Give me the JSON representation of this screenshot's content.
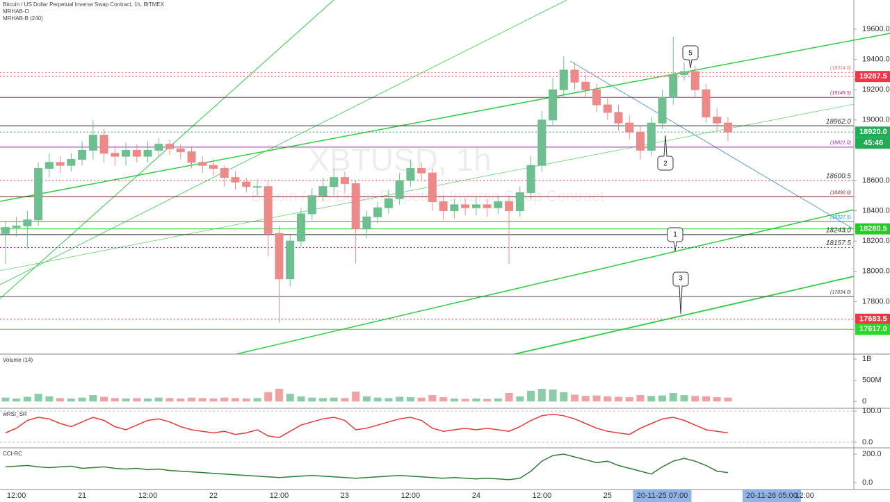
{
  "chart_data": [
    {
      "type": "candlestick",
      "title": "Bitcoin / US Dollar Perpetual Inverse Swap Contract, 1h, BITMEX",
      "indicators": [
        "MRHAB-O",
        "MRHAB-B (240)"
      ],
      "watermark": "XBTUSD, 1h",
      "watermark_subtitle": "Bitcoin / US Dollar Perpetual Inverse Swap Contract",
      "categories": [
        null,
        "12:00",
        null,
        null,
        null,
        null,
        null,
        "21",
        null,
        null,
        null,
        null,
        null,
        "12:00",
        null,
        null,
        null,
        null,
        null,
        "22",
        null,
        null,
        null,
        null,
        null,
        "12:00",
        null,
        null,
        null,
        null,
        null,
        "23",
        null,
        null,
        null,
        null,
        null,
        "12:00",
        null,
        null,
        null,
        null,
        null,
        "24",
        null,
        null,
        null,
        null,
        null,
        "12:00",
        null,
        null,
        null,
        null,
        null,
        "25",
        null,
        null,
        null,
        null,
        "20-11-25 07:00",
        null,
        null,
        null,
        null,
        null,
        null,
        null,
        null,
        null,
        "20-11-26 05:00",
        null,
        null,
        "12:00",
        null,
        null,
        null,
        null
      ],
      "open": [
        18250,
        18290,
        18300,
        18340,
        18680,
        18720,
        18700,
        18740,
        18800,
        18900,
        18780,
        18760,
        18800,
        18760,
        18800,
        18840,
        18810,
        18790,
        18720,
        18700,
        18680,
        18620,
        18590,
        18560,
        18560,
        18250,
        17950,
        18200,
        18380,
        18500,
        18560,
        18620,
        18580,
        18280,
        18360,
        18420,
        18480,
        18600,
        18680,
        18650,
        18460,
        18400,
        18440,
        18420,
        18440,
        18420,
        18460,
        18400,
        18520,
        18700,
        19000,
        19200,
        19330,
        19250,
        19200,
        19100,
        19050,
        18980,
        18920,
        18800,
        18980,
        19150,
        19300,
        19320,
        19200,
        19020,
        18980,
        null,
        null,
        null,
        null,
        null,
        null,
        null,
        null,
        null,
        null,
        null
      ],
      "high": [
        18330,
        18360,
        18400,
        18720,
        18780,
        18760,
        18780,
        18860,
        19000,
        18940,
        18830,
        18850,
        18840,
        18860,
        18880,
        18870,
        18840,
        18820,
        18760,
        18740,
        18700,
        18660,
        18620,
        18610,
        18600,
        18300,
        18240,
        18420,
        18550,
        18620,
        18680,
        18660,
        18600,
        18400,
        18460,
        18540,
        18650,
        18740,
        18720,
        18680,
        18500,
        18480,
        18480,
        18490,
        18480,
        18500,
        18500,
        18560,
        18760,
        19060,
        19280,
        19420,
        19380,
        19300,
        19240,
        19150,
        19100,
        19030,
        18960,
        19020,
        19200,
        19550,
        19380,
        19360,
        19240,
        19080,
        19020,
        null,
        null,
        null,
        null,
        null,
        null,
        null,
        null,
        null,
        null,
        null
      ],
      "low": [
        18050,
        18230,
        18150,
        18300,
        18620,
        18650,
        18660,
        18700,
        18740,
        18720,
        18700,
        18700,
        18720,
        18720,
        18760,
        18770,
        18740,
        18680,
        18650,
        18630,
        18560,
        18540,
        18520,
        18500,
        18100,
        17660,
        17900,
        18160,
        18340,
        18460,
        18500,
        18520,
        18050,
        18220,
        18320,
        18380,
        18440,
        18560,
        18600,
        18400,
        18340,
        18350,
        18370,
        18370,
        18360,
        18380,
        18050,
        18360,
        18480,
        18660,
        18960,
        19150,
        19200,
        19150,
        19050,
        19000,
        18930,
        18870,
        18740,
        18760,
        18940,
        19100,
        19260,
        19150,
        18980,
        18930,
        18860,
        null,
        null,
        null,
        null,
        null,
        null,
        null,
        null,
        null,
        null,
        null
      ],
      "close": [
        18290,
        18300,
        18340,
        18680,
        18720,
        18700,
        18740,
        18800,
        18900,
        18780,
        18760,
        18800,
        18760,
        18800,
        18840,
        18810,
        18790,
        18720,
        18700,
        18680,
        18620,
        18590,
        18560,
        18560,
        18250,
        17950,
        18200,
        18380,
        18500,
        18560,
        18620,
        18580,
        18280,
        18360,
        18420,
        18480,
        18600,
        18680,
        18650,
        18460,
        18400,
        18440,
        18420,
        18440,
        18420,
        18460,
        18400,
        18520,
        18700,
        19000,
        19200,
        19330,
        19250,
        19200,
        19100,
        19050,
        18980,
        18920,
        18800,
        18980,
        19150,
        19300,
        19320,
        19200,
        19020,
        18980,
        18920,
        null,
        null,
        null,
        null,
        null,
        null,
        null,
        null,
        null,
        null,
        null
      ],
      "up_color": "#6dbf8f",
      "down_color": "#ec8a8a",
      "ylim": [
        17453,
        19793
      ],
      "yticks": [
        {
          "value": 17800,
          "label": "17800.0"
        },
        {
          "value": 18000,
          "label": "18000.0"
        },
        {
          "value": 18200,
          "label": "18200.0"
        },
        {
          "value": 18400,
          "label": "18400.0"
        },
        {
          "value": 18600,
          "label": "18600.0"
        },
        {
          "value": 19000,
          "label": "19000.0"
        },
        {
          "value": 19200,
          "label": "19200.0"
        },
        {
          "value": 19400,
          "label": "19400.0"
        },
        {
          "value": 19600,
          "label": "19600.0"
        }
      ],
      "levels": [
        {
          "value": 19314,
          "label": "(19314.0)",
          "color": "#e57373",
          "style": "dotted"
        },
        {
          "value": 19287.5,
          "label": "19287.5",
          "color": "#f23645",
          "style": "dotted",
          "box": true
        },
        {
          "value": 19149.5,
          "label": "(19149.5)",
          "color": "#c2185b",
          "style": "solid"
        },
        {
          "value": 18962,
          "label": "18962.0",
          "color": "#333333",
          "style": "solid"
        },
        {
          "value": 18920,
          "label": "18920.0",
          "color": "#22ab55",
          "style": "dotted",
          "box": true
        },
        {
          "value": 18821,
          "label": "(18821.0)",
          "color": "#9c27b0",
          "style": "solid"
        },
        {
          "value": 18600.5,
          "label": "18600.5",
          "color": "#e53935",
          "style": "dotted"
        },
        {
          "value": 18492,
          "label": "(18492.0)",
          "color": "#7b1f1f",
          "style": "solid"
        },
        {
          "value": 18327.5,
          "label": "(18327.5)",
          "color": "#1e88e5",
          "style": "solid"
        },
        {
          "value": 18280.5,
          "label": "18280.5",
          "color": "#22cc22",
          "style": "solid",
          "box": true
        },
        {
          "value": 18243,
          "label": "18243.0",
          "color": "#222222",
          "style": "solid"
        },
        {
          "value": 18157.5,
          "label": "18157.5",
          "color": "#9c27b0",
          "style": "dotted"
        },
        {
          "value": 17834,
          "label": "(17834.0)",
          "color": "#444444",
          "style": "solid"
        },
        {
          "value": 17683.5,
          "label": "17683.5",
          "color": "#f23645",
          "style": "dotted",
          "box": true
        },
        {
          "value": 17617,
          "label": "17617.0",
          "color": "#22dd22",
          "style": "solid",
          "box": true
        }
      ],
      "countdown": "45:46",
      "annotations": [
        "5",
        "2",
        "1",
        "3"
      ]
    },
    {
      "type": "bar",
      "title": "Volume (14)",
      "values": [
        90000000,
        70000000,
        110000000,
        180000000,
        120000000,
        80000000,
        70000000,
        90000000,
        150000000,
        110000000,
        80000000,
        70000000,
        80000000,
        70000000,
        90000000,
        80000000,
        70000000,
        90000000,
        80000000,
        70000000,
        90000000,
        80000000,
        70000000,
        80000000,
        220000000,
        300000000,
        180000000,
        120000000,
        90000000,
        80000000,
        90000000,
        80000000,
        230000000,
        120000000,
        90000000,
        80000000,
        110000000,
        100000000,
        90000000,
        150000000,
        100000000,
        70000000,
        60000000,
        70000000,
        60000000,
        70000000,
        200000000,
        120000000,
        250000000,
        300000000,
        280000000,
        220000000,
        160000000,
        130000000,
        140000000,
        120000000,
        110000000,
        100000000,
        150000000,
        130000000,
        140000000,
        200000000,
        150000000,
        130000000,
        120000000,
        100000000,
        90000000,
        null,
        null,
        null,
        null,
        null,
        null,
        null,
        null,
        null,
        null,
        null
      ],
      "ylim": [
        -160000000,
        1115000000
      ],
      "yticks": [
        0,
        {
          "value": 500000000,
          "label": "500M"
        },
        {
          "value": 1000000000,
          "label": "1B"
        }
      ]
    },
    {
      "type": "line",
      "title": "wRSI_SR",
      "color": "#e53935",
      "grid": true,
      "values": [
        30,
        45,
        70,
        80,
        75,
        60,
        50,
        65,
        80,
        70,
        50,
        40,
        55,
        70,
        75,
        65,
        50,
        40,
        35,
        30,
        35,
        25,
        30,
        40,
        20,
        15,
        35,
        55,
        65,
        75,
        80,
        70,
        40,
        45,
        55,
        65,
        75,
        80,
        70,
        45,
        35,
        40,
        45,
        40,
        45,
        40,
        35,
        50,
        70,
        85,
        90,
        85,
        75,
        60,
        45,
        35,
        30,
        25,
        45,
        60,
        75,
        80,
        70,
        55,
        40,
        35,
        30,
        null,
        null,
        null,
        null,
        null,
        null,
        null,
        null,
        null,
        null,
        null
      ],
      "ylim": [
        -18,
        109
      ],
      "yticks": [
        {
          "value": 0,
          "label": "0.0"
        },
        {
          "value": 100,
          "label": "100.0"
        }
      ]
    },
    {
      "type": "line",
      "title": "CCI-RC",
      "color": "#2e7d32",
      "values": [
        110,
        115,
        120,
        110,
        105,
        110,
        115,
        100,
        105,
        110,
        100,
        95,
        100,
        90,
        95,
        85,
        80,
        75,
        70,
        65,
        60,
        55,
        50,
        45,
        40,
        35,
        40,
        45,
        50,
        45,
        40,
        35,
        30,
        35,
        40,
        45,
        50,
        45,
        40,
        35,
        30,
        35,
        30,
        25,
        30,
        25,
        20,
        30,
        80,
        150,
        190,
        200,
        180,
        160,
        140,
        150,
        120,
        100,
        80,
        60,
        110,
        150,
        170,
        150,
        120,
        80,
        70,
        null,
        null,
        null,
        null,
        null,
        null,
        null,
        null,
        null,
        null,
        null
      ],
      "ylim": [
        -49,
        244
      ],
      "yticks": [
        {
          "value": 0,
          "label": "0.0"
        },
        {
          "value": 200,
          "label": "200.0"
        }
      ]
    }
  ]
}
